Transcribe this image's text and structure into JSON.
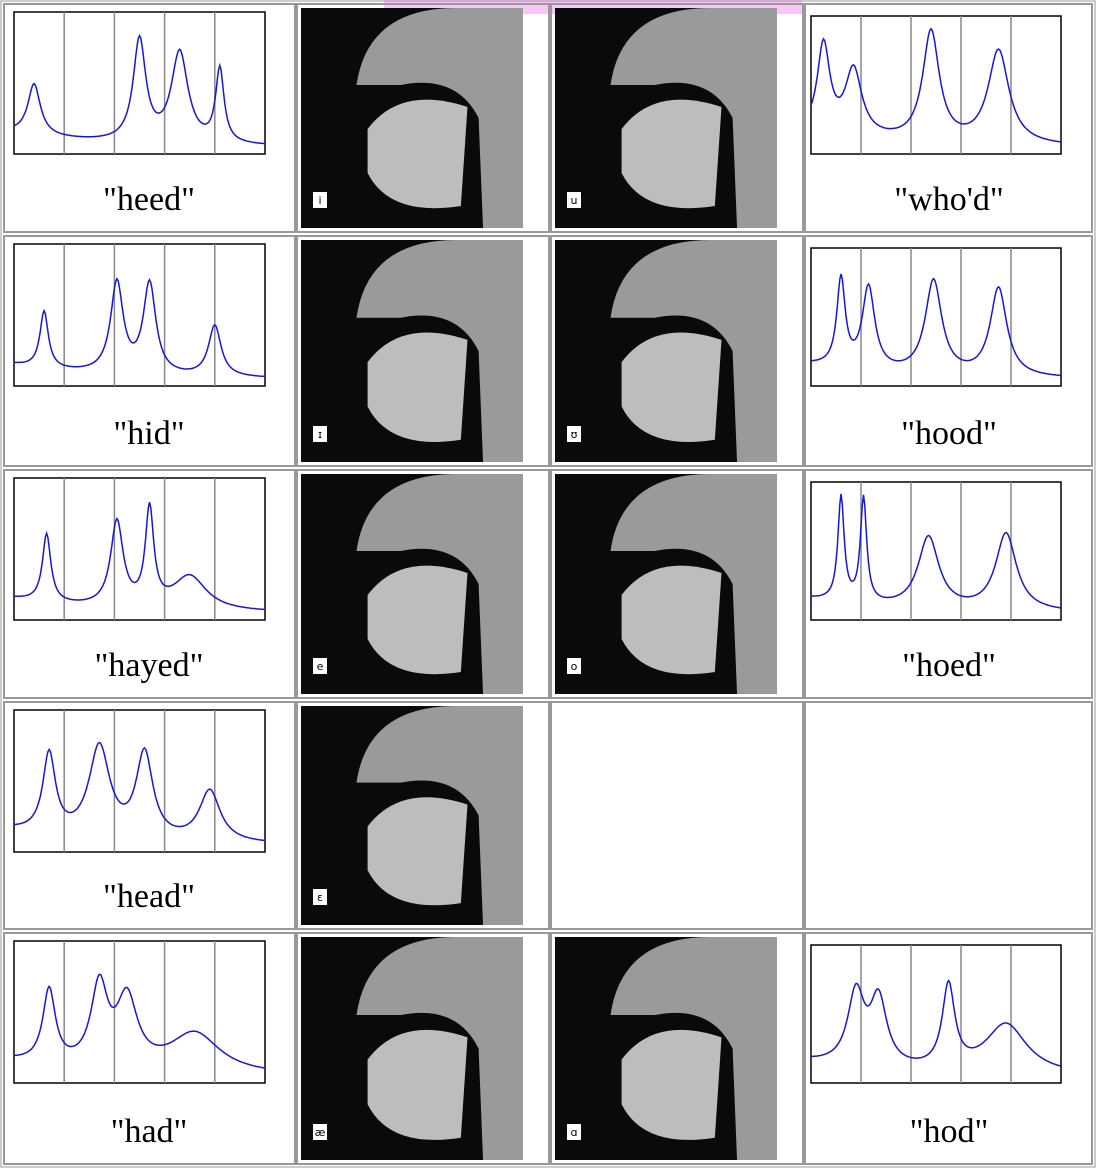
{
  "rows": [
    {
      "left": "\"heed\"",
      "mri": [
        "i",
        "u"
      ],
      "right": "\"who'd\""
    },
    {
      "left": "\"hid\"",
      "mri": [
        "ɪ",
        "ʊ"
      ],
      "right": "\"hood\""
    },
    {
      "left": "\"hayed\"",
      "mri": [
        "e",
        "o"
      ],
      "right": "\"hoed\""
    },
    {
      "left": "\"head\"",
      "mri": [
        "ɛ"
      ]
    },
    {
      "left": "\"had\"",
      "mri": [
        "æ",
        "ɑ"
      ],
      "right": "\"hod\""
    }
  ]
}
